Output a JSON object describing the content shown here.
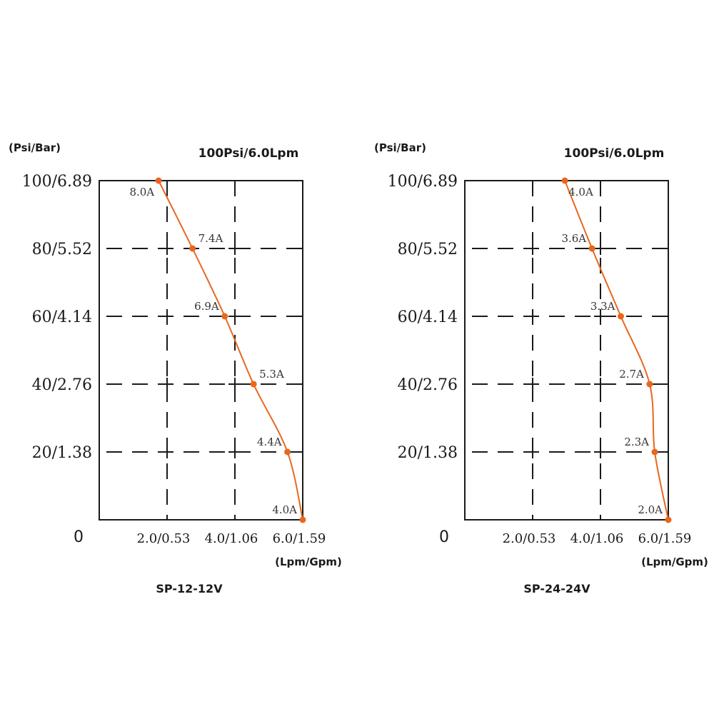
{
  "accent_color": "#e8671e",
  "chart_data": [
    {
      "type": "line",
      "title": "100Psi/6.0Lpm",
      "caption": "SP-12-12V",
      "ylabel": "(Psi/Bar)",
      "xlabel": "(Lpm/Gpm)",
      "origin_label": "0",
      "xlim": [
        0,
        6.0
      ],
      "ylim": [
        0,
        100
      ],
      "x_ticks": [
        {
          "value": 2.0,
          "label": "2.0/0.53"
        },
        {
          "value": 4.0,
          "label": "4.0/1.06"
        },
        {
          "value": 6.0,
          "label": "6.0/1.59"
        }
      ],
      "y_ticks": [
        {
          "value": 20,
          "label": "20/1.38"
        },
        {
          "value": 40,
          "label": "40/2.76"
        },
        {
          "value": 60,
          "label": "60/4.14"
        },
        {
          "value": 80,
          "label": "80/5.52"
        },
        {
          "value": 100,
          "label": "100/6.89"
        }
      ],
      "grid": "dashed",
      "points": [
        {
          "x": 1.75,
          "y": 100,
          "label": "8.0A",
          "label_side": "below-left"
        },
        {
          "x": 2.75,
          "y": 80,
          "label": "7.4A",
          "label_side": "above-right"
        },
        {
          "x": 3.7,
          "y": 60,
          "label": "6.9A",
          "label_side": "above-left"
        },
        {
          "x": 4.55,
          "y": 40,
          "label": "5.3A",
          "label_side": "above-right"
        },
        {
          "x": 5.55,
          "y": 20,
          "label": "4.4A",
          "label_side": "above-left"
        },
        {
          "x": 6.0,
          "y": 0,
          "label": "4.0A",
          "label_side": "above-left"
        }
      ]
    },
    {
      "type": "line",
      "title": "100Psi/6.0Lpm",
      "caption": "SP-24-24V",
      "ylabel": "(Psi/Bar)",
      "xlabel": "(Lpm/Gpm)",
      "origin_label": "0",
      "xlim": [
        0,
        6.0
      ],
      "ylim": [
        0,
        100
      ],
      "x_ticks": [
        {
          "value": 2.0,
          "label": "2.0/0.53"
        },
        {
          "value": 4.0,
          "label": "4.0/1.06"
        },
        {
          "value": 6.0,
          "label": "6.0/1.59"
        }
      ],
      "y_ticks": [
        {
          "value": 20,
          "label": "20/1.38"
        },
        {
          "value": 40,
          "label": "40/2.76"
        },
        {
          "value": 60,
          "label": "60/4.14"
        },
        {
          "value": 80,
          "label": "80/5.52"
        },
        {
          "value": 100,
          "label": "100/6.89"
        }
      ],
      "grid": "dashed",
      "points": [
        {
          "x": 2.95,
          "y": 100,
          "label": "4.0A",
          "label_side": "below-right"
        },
        {
          "x": 3.75,
          "y": 80,
          "label": "3.6A",
          "label_side": "above-left"
        },
        {
          "x": 4.6,
          "y": 60,
          "label": "3.3A",
          "label_side": "above-left"
        },
        {
          "x": 5.45,
          "y": 40,
          "label": "2.7A",
          "label_side": "above-left"
        },
        {
          "x": 5.6,
          "y": 20,
          "label": "2.3A",
          "label_side": "above-left"
        },
        {
          "x": 6.0,
          "y": 0,
          "label": "2.0A",
          "label_side": "above-left"
        }
      ]
    }
  ]
}
